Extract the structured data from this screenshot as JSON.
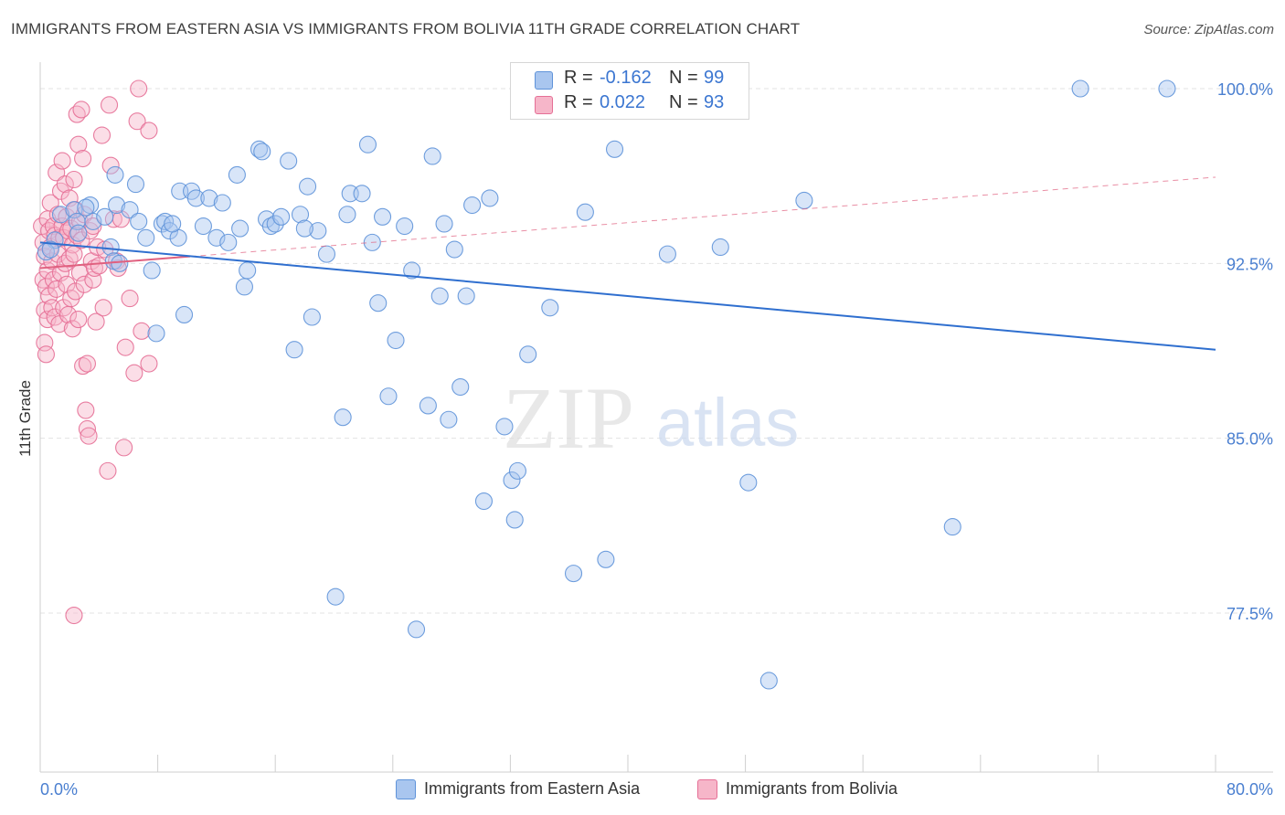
{
  "header": {
    "title": "IMMIGRANTS FROM EASTERN ASIA VS IMMIGRANTS FROM BOLIVIA 11TH GRADE CORRELATION CHART",
    "source": "Source: ZipAtlas.com"
  },
  "watermark": {
    "zip": "ZIP",
    "atlas": "atlas"
  },
  "legend_stats": {
    "rows": [
      {
        "r_label": "R =",
        "r_value": "-0.162",
        "n_label": "N =",
        "n_value": "99",
        "color": "#a9c6ef"
      },
      {
        "r_label": "R =",
        "r_value": "0.022",
        "n_label": "N =",
        "n_value": "93",
        "color": "#f6b6c9"
      }
    ]
  },
  "colors": {
    "blue_fill": "#a9c6ef",
    "blue_stroke": "#5f93d9",
    "blue_line": "#2f6fcf",
    "pink_fill": "#f6b6c9",
    "pink_stroke": "#e56f96",
    "pink_line": "#e0607f",
    "tick_label": "#4a7fd0",
    "grid": "#e3e3e3"
  },
  "chart_data": {
    "type": "scatter",
    "title": "IMMIGRANTS FROM EASTERN ASIA VS IMMIGRANTS FROM BOLIVIA 11TH GRADE CORRELATION CHART",
    "xlabel": "",
    "ylabel": "11th Grade",
    "xlim": [
      0,
      80
    ],
    "ylim": [
      71.0,
      101.0
    ],
    "x_tick_labels": [
      "0.0%",
      "80.0%"
    ],
    "y_ticks": [
      100.0,
      92.5,
      85.0,
      77.5
    ],
    "y_tick_labels": [
      "100.0%",
      "92.5%",
      "85.0%",
      "77.5%"
    ],
    "grid": true,
    "legend_position": "bottom-center",
    "series": [
      {
        "name": "Immigrants from Eastern Asia",
        "r": -0.162,
        "n": 99,
        "trend": {
          "x": [
            0,
            80
          ],
          "y": [
            93.4,
            88.8
          ]
        },
        "points": [
          [
            1.0,
            93.5
          ],
          [
            1.4,
            94.6
          ],
          [
            2.3,
            94.8
          ],
          [
            2.5,
            94.3
          ],
          [
            2.6,
            93.8
          ],
          [
            3.4,
            95.0
          ],
          [
            3.6,
            94.3
          ],
          [
            4.4,
            94.5
          ],
          [
            4.8,
            93.2
          ],
          [
            5.1,
            96.3
          ],
          [
            5.2,
            95.0
          ],
          [
            6.1,
            94.8
          ],
          [
            6.5,
            95.9
          ],
          [
            6.7,
            94.3
          ],
          [
            7.2,
            93.6
          ],
          [
            7.6,
            92.2
          ],
          [
            7.9,
            89.5
          ],
          [
            8.3,
            94.2
          ],
          [
            8.5,
            94.3
          ],
          [
            8.8,
            93.9
          ],
          [
            9.4,
            93.6
          ],
          [
            9.5,
            95.6
          ],
          [
            9.8,
            90.3
          ],
          [
            10.3,
            95.6
          ],
          [
            10.6,
            95.3
          ],
          [
            11.1,
            94.1
          ],
          [
            11.5,
            95.3
          ],
          [
            12.0,
            93.6
          ],
          [
            12.4,
            95.1
          ],
          [
            12.8,
            93.4
          ],
          [
            13.4,
            96.3
          ],
          [
            13.6,
            94.0
          ],
          [
            13.9,
            91.5
          ],
          [
            14.1,
            92.2
          ],
          [
            14.9,
            97.4
          ],
          [
            15.1,
            97.3
          ],
          [
            15.4,
            94.4
          ],
          [
            15.7,
            94.1
          ],
          [
            16.0,
            94.2
          ],
          [
            16.4,
            94.5
          ],
          [
            16.9,
            96.9
          ],
          [
            17.3,
            88.8
          ],
          [
            17.7,
            94.6
          ],
          [
            18.2,
            95.8
          ],
          [
            18.5,
            90.2
          ],
          [
            18.9,
            93.9
          ],
          [
            19.5,
            92.9
          ],
          [
            20.1,
            78.2
          ],
          [
            20.6,
            85.9
          ],
          [
            20.9,
            94.6
          ],
          [
            21.1,
            95.5
          ],
          [
            21.9,
            95.5
          ],
          [
            22.3,
            97.6
          ],
          [
            22.6,
            93.4
          ],
          [
            23.0,
            90.8
          ],
          [
            23.3,
            94.5
          ],
          [
            23.7,
            86.8
          ],
          [
            24.2,
            89.2
          ],
          [
            24.8,
            94.1
          ],
          [
            25.3,
            92.2
          ],
          [
            25.6,
            76.8
          ],
          [
            26.4,
            86.4
          ],
          [
            26.7,
            97.1
          ],
          [
            27.2,
            91.1
          ],
          [
            27.5,
            94.2
          ],
          [
            27.8,
            85.8
          ],
          [
            28.2,
            93.1
          ],
          [
            28.6,
            87.2
          ],
          [
            29.0,
            91.1
          ],
          [
            29.4,
            95.0
          ],
          [
            30.2,
            82.3
          ],
          [
            30.6,
            95.3
          ],
          [
            31.6,
            85.5
          ],
          [
            32.1,
            83.2
          ],
          [
            32.3,
            81.5
          ],
          [
            32.5,
            83.6
          ],
          [
            33.2,
            88.6
          ],
          [
            34.7,
            90.6
          ],
          [
            36.3,
            79.2
          ],
          [
            37.1,
            94.7
          ],
          [
            37.3,
            99.9
          ],
          [
            38.5,
            79.8
          ],
          [
            39.1,
            97.4
          ],
          [
            42.7,
            92.9
          ],
          [
            43.6,
            100.0
          ],
          [
            46.3,
            93.2
          ],
          [
            48.2,
            83.1
          ],
          [
            52.0,
            95.2
          ],
          [
            62.1,
            81.2
          ],
          [
            70.8,
            100.0
          ],
          [
            76.7,
            100.0
          ],
          [
            49.6,
            74.6
          ],
          [
            0.4,
            93.0
          ],
          [
            0.7,
            93.1
          ],
          [
            3.1,
            94.9
          ],
          [
            5.0,
            92.6
          ],
          [
            5.4,
            92.5
          ],
          [
            9.0,
            94.2
          ],
          [
            18.0,
            94.0
          ]
        ]
      },
      {
        "name": "Immigrants from Bolivia",
        "r": 0.022,
        "n": 93,
        "trend": {
          "x": [
            0,
            10.2
          ],
          "y": [
            92.3,
            92.8
          ]
        },
        "trend_extended": {
          "x": [
            0,
            80
          ],
          "y": [
            92.3,
            96.2
          ]
        },
        "points": [
          [
            0.1,
            94.1
          ],
          [
            0.2,
            93.4
          ],
          [
            0.2,
            91.8
          ],
          [
            0.3,
            92.8
          ],
          [
            0.3,
            90.5
          ],
          [
            0.3,
            89.1
          ],
          [
            0.4,
            91.5
          ],
          [
            0.4,
            88.6
          ],
          [
            0.5,
            94.4
          ],
          [
            0.5,
            92.2
          ],
          [
            0.5,
            90.1
          ],
          [
            0.6,
            93.9
          ],
          [
            0.6,
            91.1
          ],
          [
            0.7,
            95.1
          ],
          [
            0.7,
            93.2
          ],
          [
            0.8,
            92.6
          ],
          [
            0.8,
            90.6
          ],
          [
            0.9,
            94.1
          ],
          [
            0.9,
            91.8
          ],
          [
            1.0,
            93.7
          ],
          [
            1.0,
            90.2
          ],
          [
            1.1,
            96.4
          ],
          [
            1.1,
            91.4
          ],
          [
            1.2,
            94.6
          ],
          [
            1.2,
            92.9
          ],
          [
            1.3,
            93.6
          ],
          [
            1.3,
            89.9
          ],
          [
            1.4,
            95.6
          ],
          [
            1.4,
            92.1
          ],
          [
            1.5,
            96.9
          ],
          [
            1.5,
            94.1
          ],
          [
            1.6,
            93.6
          ],
          [
            1.6,
            90.6
          ],
          [
            1.7,
            95.9
          ],
          [
            1.7,
            92.5
          ],
          [
            1.8,
            94.5
          ],
          [
            1.8,
            91.6
          ],
          [
            1.9,
            93.9
          ],
          [
            1.9,
            90.3
          ],
          [
            2.0,
            95.3
          ],
          [
            2.0,
            92.7
          ],
          [
            2.1,
            94.0
          ],
          [
            2.1,
            91.0
          ],
          [
            2.2,
            93.3
          ],
          [
            2.2,
            89.7
          ],
          [
            2.3,
            96.1
          ],
          [
            2.3,
            92.9
          ],
          [
            2.4,
            94.8
          ],
          [
            2.4,
            91.3
          ],
          [
            2.5,
            93.7
          ],
          [
            2.5,
            98.9
          ],
          [
            2.6,
            90.1
          ],
          [
            2.6,
            97.6
          ],
          [
            2.7,
            94.3
          ],
          [
            2.7,
            92.1
          ],
          [
            2.8,
            99.1
          ],
          [
            2.8,
            93.5
          ],
          [
            2.9,
            97.0
          ],
          [
            2.9,
            88.1
          ],
          [
            3.0,
            94.6
          ],
          [
            3.0,
            91.6
          ],
          [
            3.1,
            86.2
          ],
          [
            3.2,
            85.4
          ],
          [
            3.3,
            85.1
          ],
          [
            3.2,
            88.2
          ],
          [
            3.4,
            93.9
          ],
          [
            3.5,
            92.6
          ],
          [
            3.6,
            94.1
          ],
          [
            3.6,
            91.8
          ],
          [
            3.7,
            92.3
          ],
          [
            3.8,
            90.0
          ],
          [
            3.9,
            93.2
          ],
          [
            4.0,
            92.4
          ],
          [
            4.2,
            98.0
          ],
          [
            4.3,
            90.6
          ],
          [
            4.4,
            93.1
          ],
          [
            4.6,
            83.6
          ],
          [
            4.7,
            99.3
          ],
          [
            4.8,
            96.7
          ],
          [
            5.0,
            94.4
          ],
          [
            5.2,
            92.6
          ],
          [
            5.3,
            92.3
          ],
          [
            5.5,
            94.4
          ],
          [
            5.7,
            84.6
          ],
          [
            5.8,
            88.9
          ],
          [
            6.1,
            91.0
          ],
          [
            6.4,
            87.8
          ],
          [
            6.6,
            98.6
          ],
          [
            6.7,
            100.0
          ],
          [
            6.9,
            89.6
          ],
          [
            7.4,
            98.2
          ],
          [
            7.4,
            88.2
          ],
          [
            2.3,
            77.4
          ]
        ]
      }
    ]
  },
  "legend_bottom": {
    "items": [
      {
        "label": "Immigrants from Eastern Asia",
        "color": "#a9c6ef"
      },
      {
        "label": "Immigrants from Bolivia",
        "color": "#f6b6c9"
      }
    ]
  }
}
